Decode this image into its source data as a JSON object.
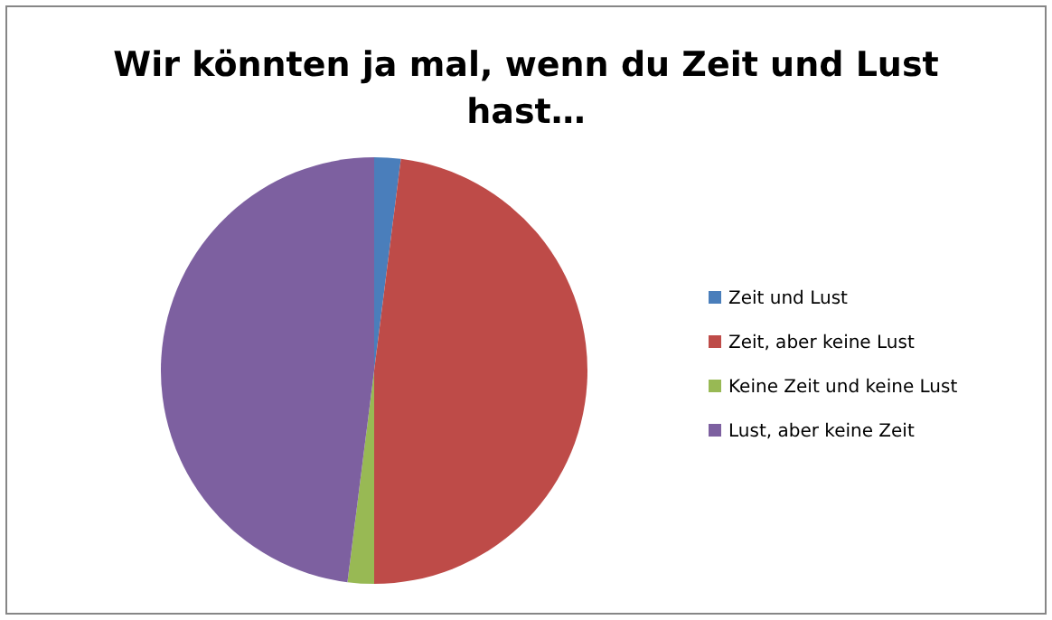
{
  "chart_data": {
    "type": "pie",
    "title": "Wir könnten ja mal, wenn du Zeit und Lust hast…",
    "categories": [
      "Zeit und Lust",
      "Zeit, aber keine Lust",
      "Keine Zeit und keine Lust",
      "Lust, aber keine Zeit"
    ],
    "values": [
      2,
      48,
      2,
      48
    ],
    "colors": [
      "#4a7ebb",
      "#be4b48",
      "#98b954",
      "#7d60a0"
    ],
    "legend": "right"
  }
}
